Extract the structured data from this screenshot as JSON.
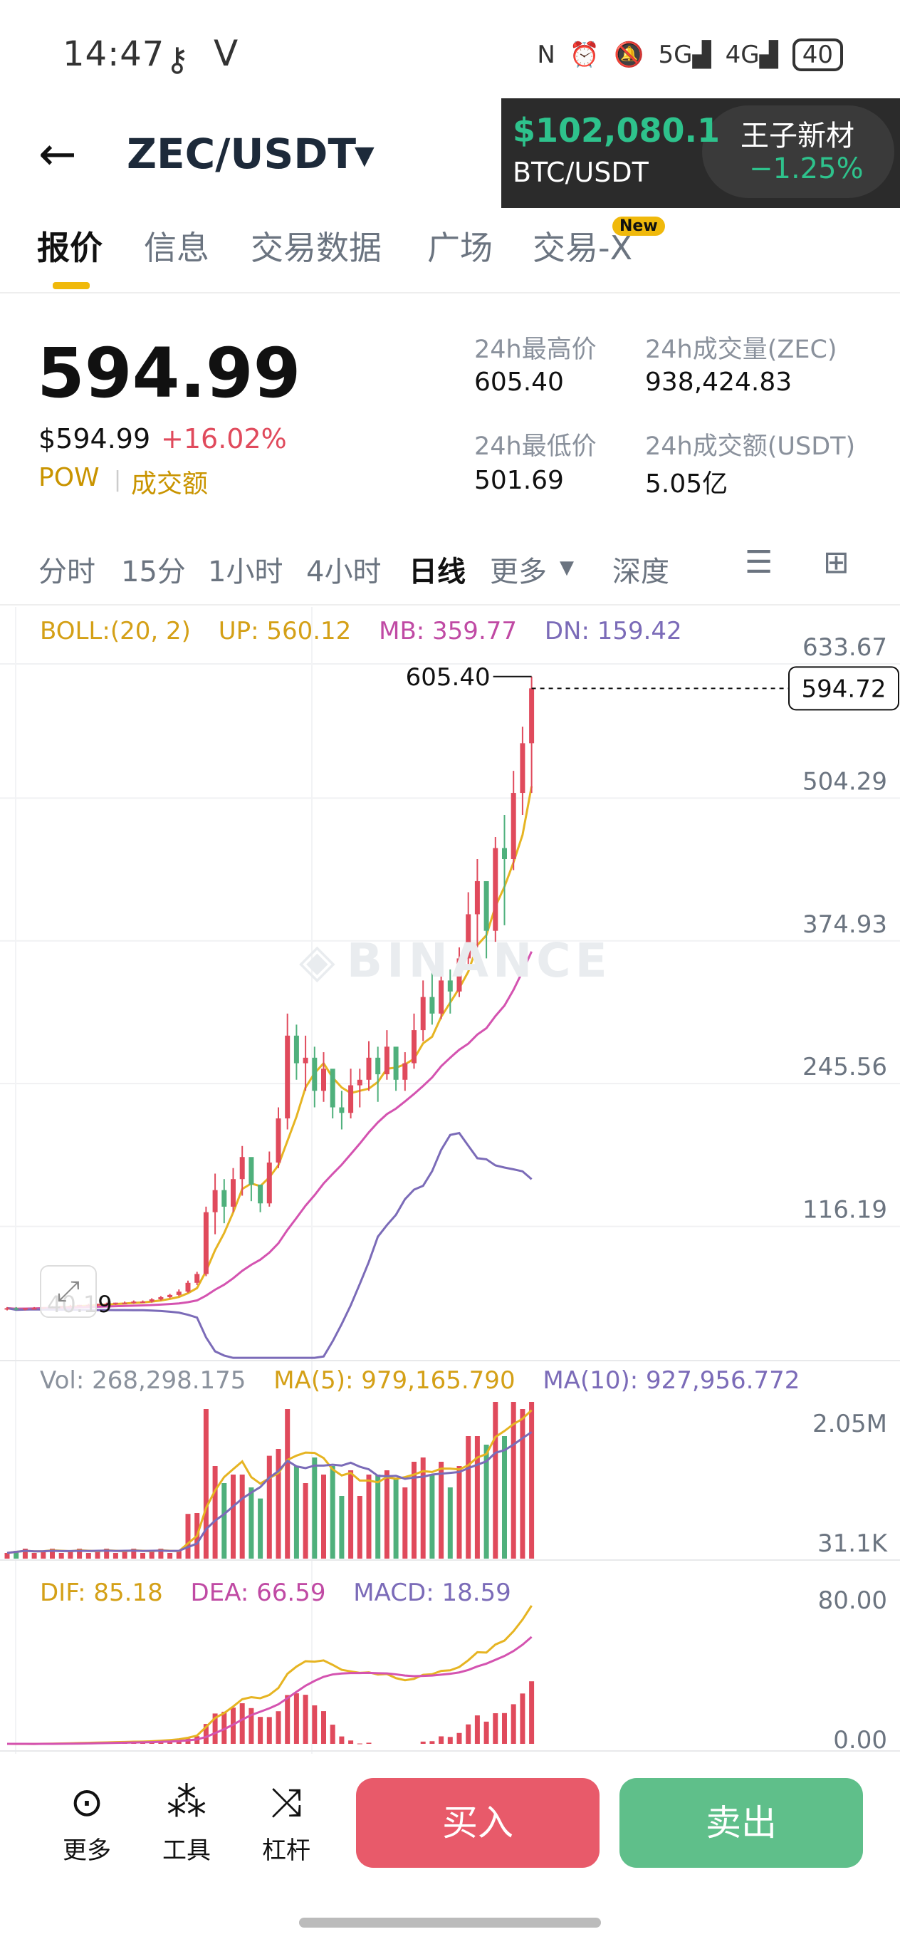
{
  "status_bar": {
    "time": "14:47",
    "key_icon": "key-icon",
    "v_icon": "V",
    "nfc": "N",
    "signal_5g": "5G",
    "signal_4g": "4G",
    "battery": "40"
  },
  "header": {
    "back_icon": "arrow-left-icon",
    "pair": "ZEC/USDT",
    "caret": "▼"
  },
  "floating_ticker": {
    "price": "$102,080.1",
    "pair": "BTC/USDT",
    "name": "王子新材",
    "change": "−1.25%"
  },
  "tabs": [
    {
      "label": "报价",
      "active": true
    },
    {
      "label": "信息"
    },
    {
      "label": "交易数据"
    },
    {
      "label": "广场"
    },
    {
      "label": "交易-X"
    }
  ],
  "new_badge": "New",
  "price_panel": {
    "last": "594.99",
    "usd": "$594.99",
    "change": "+16.02%",
    "tag1": "POW",
    "tag2": "成交额",
    "stats": {
      "high_label": "24h最高价",
      "high": "605.40",
      "vol_label": "24h成交量(ZEC)",
      "vol": "938,424.83",
      "low_label": "24h最低价",
      "low": "501.69",
      "amt_label": "24h成交额(USDT)",
      "amt": "5.05亿"
    }
  },
  "intervals": {
    "items": [
      "分时",
      "15分",
      "1小时",
      "4小时",
      "日线",
      "更多",
      "深度"
    ],
    "active": "日线"
  },
  "legends": {
    "boll": {
      "name": "BOLL:(20, 2)",
      "up": "UP: 560.12",
      "mb": "MB: 359.77",
      "dn": "DN: 159.42"
    },
    "vol": {
      "vol": "Vol: 268,298.175",
      "ma5": "MA(5): 979,165.790",
      "ma10": "MA(10): 927,956.772"
    },
    "macd": {
      "dif": "DIF: 85.18",
      "dea": "DEA: 66.59",
      "macd": "MACD: 18.59"
    }
  },
  "watermark": "BINANCE",
  "bottom_bar": {
    "more": "更多",
    "tools": "工具",
    "leverage": "杠杆",
    "buy": "买入",
    "sell": "卖出"
  },
  "colors": {
    "up": "#e04a5c",
    "down": "#4fb07c",
    "boll_up": "#e6b422",
    "boll_mb": "#d453b0",
    "boll_dn": "#7b6bb8",
    "accent": "#f0b90b"
  },
  "chart_data": [
    {
      "type": "candlestick",
      "title": "",
      "y_axis_labels": [
        "633.67",
        "504.29",
        "374.93",
        "245.56",
        "116.19"
      ],
      "ylim": [
        -13.2,
        633.67
      ],
      "high_label": "605.40",
      "last_label": "594.72",
      "partial_low_label": "40.19",
      "indicators": [
        "BOLL UP",
        "BOLL MB",
        "BOLL DN"
      ],
      "candles_ohlc": [
        [
          33,
          34,
          31,
          33
        ],
        [
          33,
          34,
          31,
          32
        ],
        [
          32,
          33,
          31,
          33
        ],
        [
          33,
          34,
          32,
          33
        ],
        [
          33,
          34,
          32,
          34
        ],
        [
          34,
          35,
          33,
          34
        ],
        [
          34,
          35,
          33,
          35
        ],
        [
          35,
          36,
          34,
          35
        ],
        [
          35,
          36,
          34,
          36
        ],
        [
          36,
          37,
          35,
          36
        ],
        [
          36,
          37,
          35,
          37
        ],
        [
          37,
          38,
          36,
          37
        ],
        [
          37,
          38,
          36,
          38
        ],
        [
          38,
          39,
          37,
          38
        ],
        [
          38,
          40,
          37,
          39
        ],
        [
          39,
          40,
          38,
          39
        ],
        [
          39,
          42,
          38,
          41
        ],
        [
          41,
          44,
          40,
          43
        ],
        [
          43,
          46,
          42,
          45
        ],
        [
          45,
          50,
          44,
          48
        ],
        [
          48,
          58,
          47,
          56
        ],
        [
          56,
          66,
          54,
          64
        ],
        [
          64,
          125,
          62,
          120
        ],
        [
          120,
          155,
          100,
          140
        ],
        [
          140,
          150,
          110,
          125
        ],
        [
          125,
          160,
          120,
          150
        ],
        [
          150,
          180,
          135,
          170
        ],
        [
          170,
          155,
          130,
          145
        ],
        [
          145,
          140,
          120,
          128
        ],
        [
          128,
          175,
          125,
          165
        ],
        [
          165,
          215,
          160,
          205
        ],
        [
          205,
          300,
          195,
          280
        ],
        [
          280,
          290,
          240,
          255
        ],
        [
          255,
          280,
          230,
          260
        ],
        [
          260,
          270,
          215,
          230
        ],
        [
          230,
          265,
          220,
          250
        ],
        [
          250,
          245,
          205,
          215
        ],
        [
          215,
          230,
          195,
          210
        ],
        [
          210,
          250,
          205,
          235
        ],
        [
          235,
          250,
          215,
          240
        ],
        [
          240,
          275,
          230,
          260
        ],
        [
          260,
          270,
          220,
          245
        ],
        [
          245,
          285,
          240,
          270
        ],
        [
          270,
          260,
          230,
          240
        ],
        [
          240,
          265,
          230,
          255
        ],
        [
          255,
          300,
          250,
          285
        ],
        [
          285,
          330,
          275,
          315
        ],
        [
          315,
          340,
          290,
          300
        ],
        [
          300,
          345,
          295,
          330
        ],
        [
          330,
          340,
          300,
          320
        ],
        [
          320,
          360,
          315,
          350
        ],
        [
          350,
          410,
          340,
          390
        ],
        [
          390,
          440,
          360,
          420
        ],
        [
          420,
          405,
          350,
          375
        ],
        [
          375,
          460,
          365,
          450
        ],
        [
          450,
          480,
          380,
          440
        ],
        [
          440,
          520,
          430,
          500
        ],
        [
          500,
          560,
          480,
          545
        ],
        [
          545,
          605.4,
          500,
          594.72
        ]
      ]
    },
    {
      "type": "bar",
      "title": "",
      "y_axis_labels": [
        "2.05M",
        "31.1K"
      ],
      "indicators": [
        "MA(5)",
        "MA(10)"
      ]
    },
    {
      "type": "bar",
      "title": "",
      "y_axis_labels": [
        "80.00",
        "0.00"
      ],
      "indicators": [
        "DIF",
        "DEA",
        "MACD"
      ]
    }
  ]
}
